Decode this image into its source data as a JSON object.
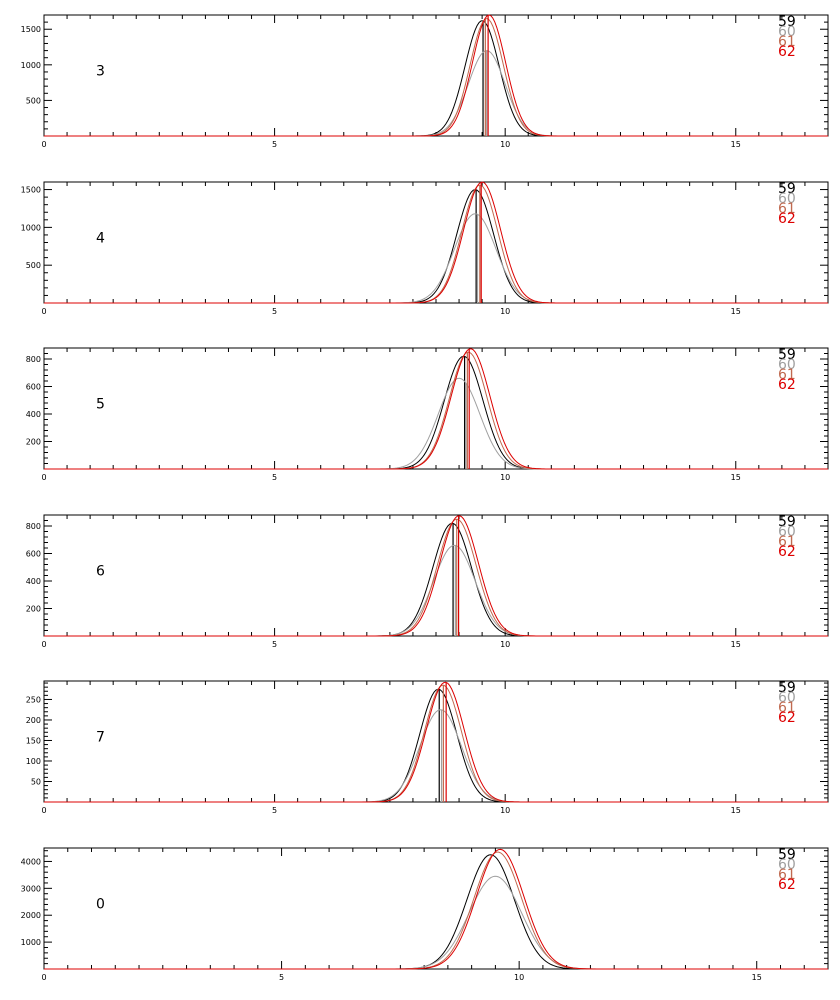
{
  "chart_data": [
    {
      "type": "line",
      "panel_label": "3",
      "xlim": [
        0,
        17
      ],
      "ylim": [
        0,
        1700
      ],
      "xticks": [
        {
          "value": 0,
          "label": "0"
        },
        {
          "value": 5,
          "label": "5"
        },
        {
          "value": 10,
          "label": "10"
        },
        {
          "value": 15,
          "label": "15"
        }
      ],
      "yticks": [
        {
          "value": 500,
          "label": "500"
        },
        {
          "value": 1000,
          "label": "1000"
        },
        {
          "value": 1500,
          "label": "1500"
        }
      ],
      "series": [
        {
          "name": "59",
          "color": "#000000",
          "center": 9.5,
          "peak": 1620,
          "sigma": 0.37,
          "marker_x": 9.52
        },
        {
          "name": "60",
          "color": "#a0a0a0",
          "center": 9.6,
          "peak": 1200,
          "sigma": 0.4,
          "marker_x": 9.6
        },
        {
          "name": "61",
          "color": "#c06a50",
          "center": 9.6,
          "peak": 1650,
          "sigma": 0.36,
          "marker_x": 9.57
        },
        {
          "name": "62",
          "color": "#dd0000",
          "center": 9.65,
          "peak": 1700,
          "sigma": 0.36,
          "marker_x": 9.63
        }
      ],
      "legend": [
        "59",
        "60",
        "61",
        "62"
      ],
      "legend_position": "top-right"
    },
    {
      "type": "line",
      "panel_label": "4",
      "xlim": [
        0,
        17
      ],
      "ylim": [
        0,
        1600
      ],
      "xticks": [
        {
          "value": 0,
          "label": "0"
        },
        {
          "value": 5,
          "label": "5"
        },
        {
          "value": 10,
          "label": "10"
        },
        {
          "value": 15,
          "label": "15"
        }
      ],
      "yticks": [
        {
          "value": 500,
          "label": "500"
        },
        {
          "value": 1000,
          "label": "1000"
        },
        {
          "value": 1500,
          "label": "1500"
        }
      ],
      "series": [
        {
          "name": "59",
          "color": "#000000",
          "center": 9.35,
          "peak": 1500,
          "sigma": 0.4,
          "marker_x": 9.37
        },
        {
          "name": "60",
          "color": "#a0a0a0",
          "center": 9.35,
          "peak": 1180,
          "sigma": 0.45,
          "marker_x": 9.4
        },
        {
          "name": "61",
          "color": "#c06a50",
          "center": 9.45,
          "peak": 1560,
          "sigma": 0.39,
          "marker_x": 9.45
        },
        {
          "name": "62",
          "color": "#dd0000",
          "center": 9.5,
          "peak": 1600,
          "sigma": 0.4,
          "marker_x": 9.48
        }
      ],
      "legend": [
        "59",
        "60",
        "61",
        "62"
      ],
      "legend_position": "top-right"
    },
    {
      "type": "line",
      "panel_label": "5",
      "xlim": [
        0,
        17
      ],
      "ylim": [
        0,
        880
      ],
      "xticks": [
        {
          "value": 0,
          "label": "0"
        },
        {
          "value": 5,
          "label": "5"
        },
        {
          "value": 10,
          "label": "10"
        },
        {
          "value": 15,
          "label": "15"
        }
      ],
      "yticks": [
        {
          "value": 200,
          "label": "200"
        },
        {
          "value": 400,
          "label": "400"
        },
        {
          "value": 600,
          "label": "600"
        },
        {
          "value": 800,
          "label": "800"
        }
      ],
      "series": [
        {
          "name": "59",
          "color": "#000000",
          "center": 9.1,
          "peak": 820,
          "sigma": 0.42,
          "marker_x": 9.12
        },
        {
          "name": "60",
          "color": "#a0a0a0",
          "center": 9.0,
          "peak": 660,
          "sigma": 0.45,
          "marker_x": 9.15
        },
        {
          "name": "61",
          "color": "#c06a50",
          "center": 9.2,
          "peak": 850,
          "sigma": 0.41,
          "marker_x": 9.18
        },
        {
          "name": "62",
          "color": "#dd0000",
          "center": 9.25,
          "peak": 875,
          "sigma": 0.42,
          "marker_x": 9.22
        }
      ],
      "legend": [
        "59",
        "60",
        "61",
        "62"
      ],
      "legend_position": "top-right"
    },
    {
      "type": "line",
      "panel_label": "6",
      "xlim": [
        0,
        17
      ],
      "ylim": [
        0,
        880
      ],
      "xticks": [
        {
          "value": 0,
          "label": "0"
        },
        {
          "value": 5,
          "label": "5"
        },
        {
          "value": 10,
          "label": "10"
        },
        {
          "value": 15,
          "label": "15"
        }
      ],
      "yticks": [
        {
          "value": 200,
          "label": "200"
        },
        {
          "value": 400,
          "label": "400"
        },
        {
          "value": 600,
          "label": "600"
        },
        {
          "value": 800,
          "label": "800"
        }
      ],
      "series": [
        {
          "name": "59",
          "color": "#000000",
          "center": 8.85,
          "peak": 820,
          "sigma": 0.42,
          "marker_x": 8.87
        },
        {
          "name": "60",
          "color": "#a0a0a0",
          "center": 8.9,
          "peak": 660,
          "sigma": 0.45,
          "marker_x": 8.92
        },
        {
          "name": "61",
          "color": "#c06a50",
          "center": 8.95,
          "peak": 850,
          "sigma": 0.42,
          "marker_x": 8.95
        },
        {
          "name": "62",
          "color": "#dd0000",
          "center": 9.0,
          "peak": 875,
          "sigma": 0.42,
          "marker_x": 8.99
        }
      ],
      "legend": [
        "59",
        "60",
        "61",
        "62"
      ],
      "legend_position": "top-right"
    },
    {
      "type": "line",
      "panel_label": "7",
      "xlim": [
        0,
        17
      ],
      "ylim": [
        0,
        295
      ],
      "xticks": [
        {
          "value": 0,
          "label": "0"
        },
        {
          "value": 5,
          "label": "5"
        },
        {
          "value": 10,
          "label": "10"
        },
        {
          "value": 15,
          "label": "15"
        }
      ],
      "yticks": [
        {
          "value": 50,
          "label": "50"
        },
        {
          "value": 100,
          "label": "100"
        },
        {
          "value": 150,
          "label": "150"
        },
        {
          "value": 200,
          "label": "200"
        },
        {
          "value": 250,
          "label": "250"
        }
      ],
      "series": [
        {
          "name": "59",
          "color": "#000000",
          "center": 8.55,
          "peak": 275,
          "sigma": 0.4,
          "marker_x": 8.57
        },
        {
          "name": "60",
          "color": "#a0a0a0",
          "center": 8.6,
          "peak": 225,
          "sigma": 0.45,
          "marker_x": 8.62
        },
        {
          "name": "61",
          "color": "#c06a50",
          "center": 8.65,
          "peak": 285,
          "sigma": 0.4,
          "marker_x": 8.66
        },
        {
          "name": "62",
          "color": "#dd0000",
          "center": 8.7,
          "peak": 292,
          "sigma": 0.41,
          "marker_x": 8.72
        }
      ],
      "legend": [
        "59",
        "60",
        "61",
        "62"
      ],
      "legend_position": "top-right"
    },
    {
      "type": "line",
      "panel_label": "0",
      "xlim": [
        0,
        16.5
      ],
      "ylim": [
        0,
        4500
      ],
      "xticks": [
        {
          "value": 0,
          "label": "0"
        },
        {
          "value": 5,
          "label": "5"
        },
        {
          "value": 10,
          "label": "10"
        },
        {
          "value": 15,
          "label": "15"
        }
      ],
      "yticks": [
        {
          "value": 1000,
          "label": "1000"
        },
        {
          "value": 2000,
          "label": "2000"
        },
        {
          "value": 3000,
          "label": "3000"
        },
        {
          "value": 4000,
          "label": "4000"
        }
      ],
      "series": [
        {
          "name": "59",
          "color": "#000000",
          "center": 9.4,
          "peak": 4250,
          "sigma": 0.5,
          "marker_x": null
        },
        {
          "name": "60",
          "color": "#a0a0a0",
          "center": 9.5,
          "peak": 3450,
          "sigma": 0.55,
          "marker_x": null
        },
        {
          "name": "61",
          "color": "#c06a50",
          "center": 9.55,
          "peak": 4350,
          "sigma": 0.5,
          "marker_x": null
        },
        {
          "name": "62",
          "color": "#dd0000",
          "center": 9.6,
          "peak": 4450,
          "sigma": 0.5,
          "marker_x": null
        }
      ],
      "legend": [
        "59",
        "60",
        "61",
        "62"
      ],
      "legend_position": "top-right"
    }
  ]
}
